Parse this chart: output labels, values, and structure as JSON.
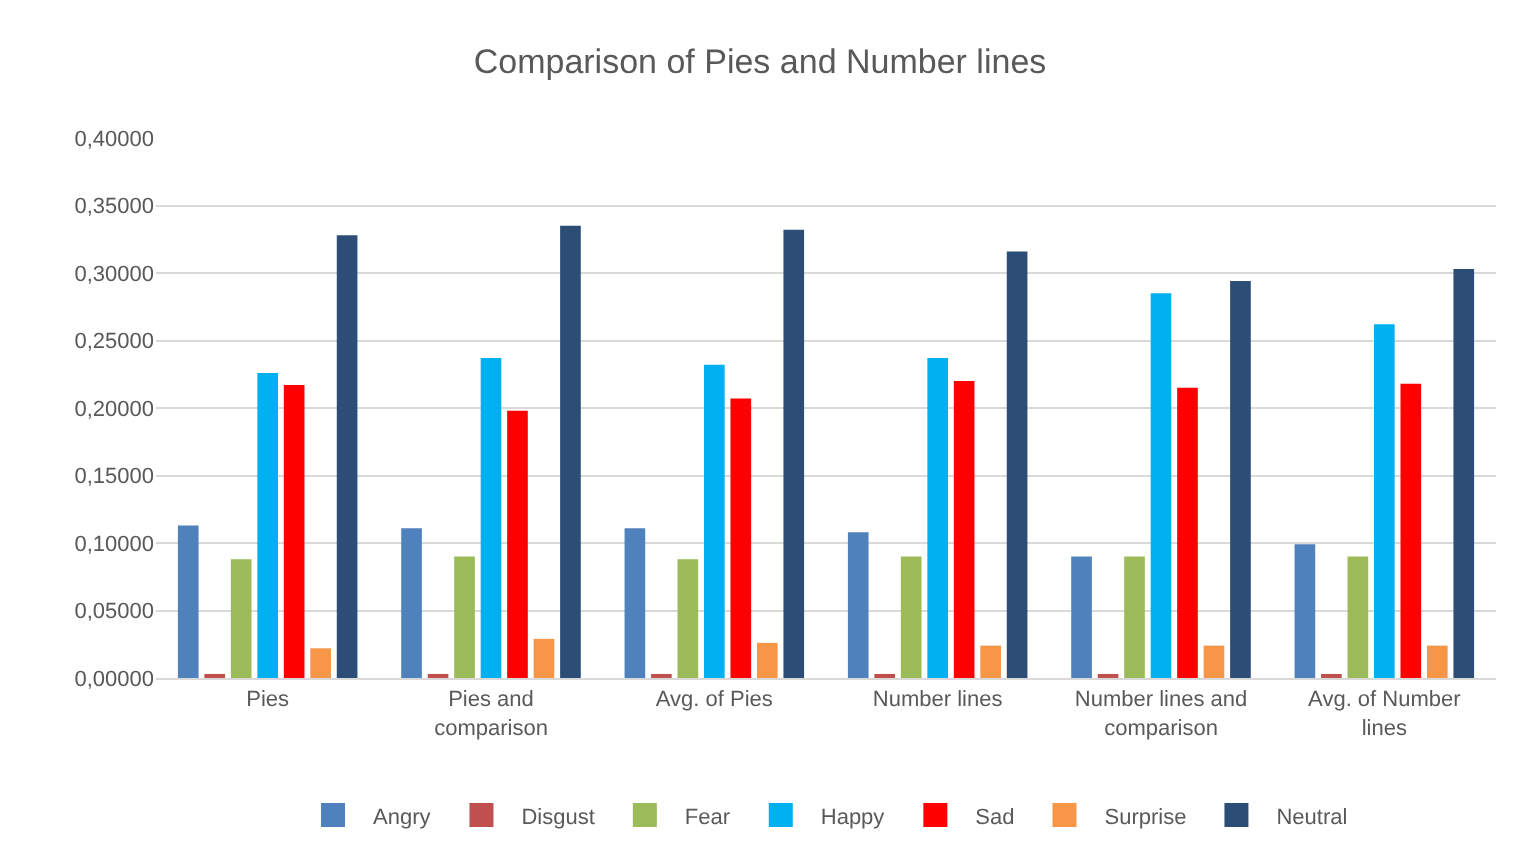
{
  "chart_data": {
    "type": "bar",
    "title": "Comparison of Pies and Number lines",
    "categories": [
      "Pies",
      "Pies and comparison",
      "Avg. of Pies",
      "Number lines",
      "Number lines and comparison",
      "Avg. of Number lines"
    ],
    "series": [
      {
        "name": "Angry",
        "color": "#4f81bd",
        "values": [
          0.113,
          0.111,
          0.111,
          0.108,
          0.09,
          0.099
        ]
      },
      {
        "name": "Disgust",
        "color": "#c0504d",
        "values": [
          0.003,
          0.003,
          0.003,
          0.003,
          0.003,
          0.003
        ]
      },
      {
        "name": "Fear",
        "color": "#9bbb59",
        "values": [
          0.088,
          0.09,
          0.088,
          0.09,
          0.09,
          0.09
        ]
      },
      {
        "name": "Happy",
        "color": "#00b0f0",
        "values": [
          0.226,
          0.237,
          0.232,
          0.237,
          0.285,
          0.262
        ]
      },
      {
        "name": "Sad",
        "color": "#ff0000",
        "values": [
          0.217,
          0.198,
          0.207,
          0.22,
          0.215,
          0.218
        ]
      },
      {
        "name": "Surprise",
        "color": "#f79646",
        "values": [
          0.022,
          0.029,
          0.026,
          0.024,
          0.024,
          0.024
        ]
      },
      {
        "name": "Neutral",
        "color": "#2c4d75",
        "values": [
          0.328,
          0.335,
          0.332,
          0.316,
          0.294,
          0.303
        ]
      }
    ],
    "ylim": [
      0,
      0.4
    ],
    "yticks": [
      {
        "value": 0,
        "label": "0,00000"
      },
      {
        "value": 0.05,
        "label": "0,05000"
      },
      {
        "value": 0.1,
        "label": "0,10000"
      },
      {
        "value": 0.15,
        "label": "0,15000"
      },
      {
        "value": 0.2,
        "label": "0,20000"
      },
      {
        "value": 0.25,
        "label": "0,25000"
      },
      {
        "value": 0.3,
        "label": "0,30000"
      },
      {
        "value": 0.35,
        "label": "0,35000"
      },
      {
        "value": 0.4,
        "label": "0,40000"
      }
    ],
    "grid": "y",
    "legend": "bottom"
  }
}
